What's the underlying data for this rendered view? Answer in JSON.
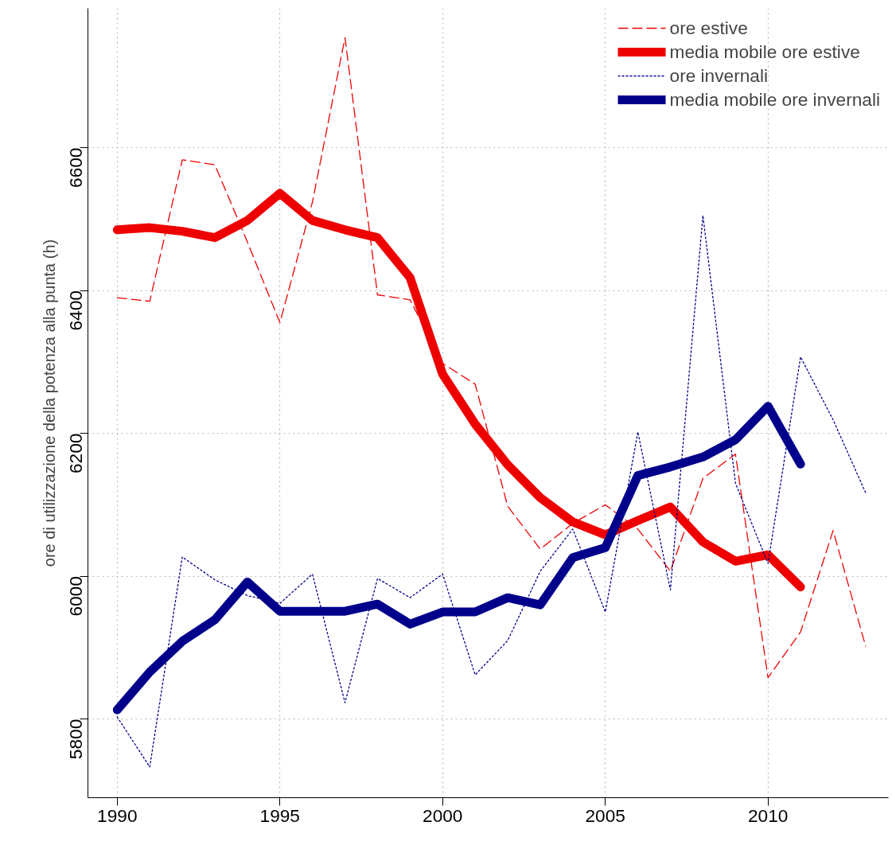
{
  "chart_data": {
    "type": "line",
    "ylabel": "ore di utilizzazione della potenza alla punta (h)",
    "x": [
      1990,
      1991,
      1992,
      1993,
      1994,
      1995,
      1996,
      1997,
      1998,
      1999,
      2000,
      2001,
      2002,
      2003,
      2004,
      2005,
      2006,
      2007,
      2008,
      2009,
      2010,
      2011,
      2012,
      2013
    ],
    "series": [
      {
        "name": "ore estive",
        "color": "#ee0000",
        "line_style": "dashed",
        "values": [
          6390,
          6385,
          6583,
          6576,
          6468,
          6355,
          6524,
          6754,
          6394,
          6387,
          6298,
          6269,
          6098,
          6038,
          6074,
          6100,
          6066,
          6007,
          6137,
          6171,
          5858,
          5922,
          6064,
          5902
        ]
      },
      {
        "name": "media mobile ore estive",
        "color": "#ee0000",
        "line_style": "solid",
        "values": [
          6485,
          6488,
          6483,
          6474,
          6498,
          6536,
          6498,
          6485,
          6474,
          6418,
          6283,
          6213,
          6156,
          6110,
          6076,
          6058,
          6078,
          6097,
          6048,
          6021,
          6030,
          5985,
          null,
          null
        ]
      },
      {
        "name": "ore invernali",
        "color": "#00008b",
        "line_style": "dotted",
        "values": [
          5803,
          5733,
          6027,
          5995,
          5973,
          5962,
          6003,
          5823,
          5997,
          5970,
          6003,
          5862,
          5910,
          6007,
          6066,
          5950,
          6202,
          5981,
          6505,
          6130,
          6018,
          6307,
          6219,
          6117
        ]
      },
      {
        "name": "media mobile ore invernali",
        "color": "#00008b",
        "line_style": "solid",
        "values": [
          5813,
          5866,
          5909,
          5939,
          5992,
          5951,
          5951,
          5951,
          5961,
          5933,
          5950,
          5950,
          5970,
          5960,
          6026,
          6040,
          6141,
          6153,
          6167,
          6191,
          6238,
          6157,
          null,
          null
        ]
      }
    ],
    "xlim": [
      1989.1,
      2013.7
    ],
    "ylim": [
      5690,
      6795
    ],
    "xticks": [
      1990,
      1995,
      2000,
      2005,
      2010
    ],
    "yticks": [
      5800,
      6000,
      6200,
      6400,
      6600
    ],
    "grid": true,
    "legend": "top right",
    "marker": "none"
  }
}
